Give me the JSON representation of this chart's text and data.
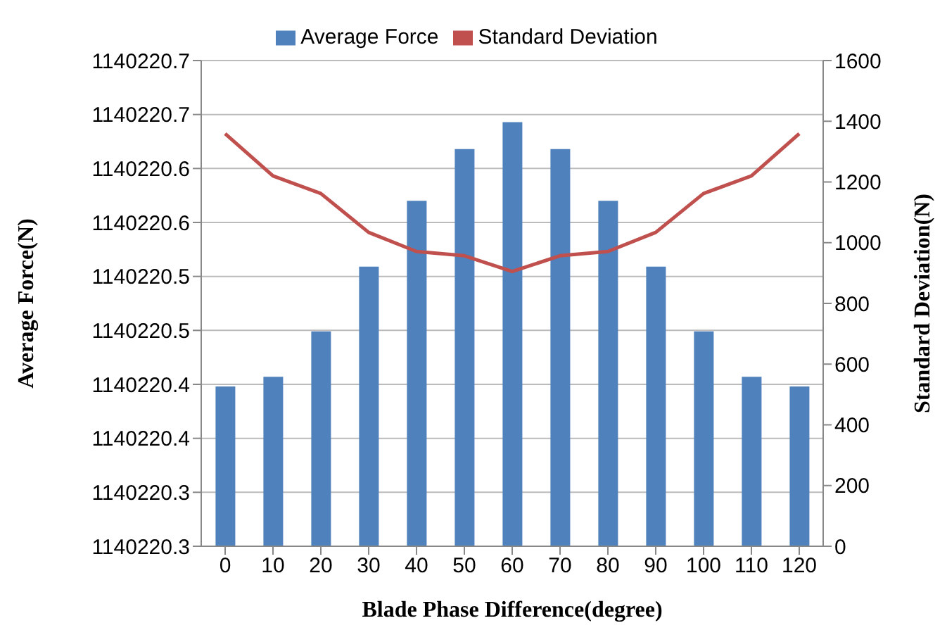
{
  "chart_data": {
    "type": "bar",
    "xlabel": "Blade Phase Difference(degree)",
    "ylabel": "Average Force(N)",
    "y2label": "Standard Deviation(N)",
    "categories": [
      "0",
      "10",
      "20",
      "30",
      "40",
      "50",
      "60",
      "70",
      "80",
      "90",
      "100",
      "110",
      "120"
    ],
    "series": [
      {
        "name": "Average Force",
        "color": "#4f81bd",
        "values": [
          1140220.398,
          1140220.407,
          1140220.449,
          1140220.509,
          1140220.57,
          1140220.618,
          1140220.643,
          1140220.618,
          1140220.57,
          1140220.509,
          1140220.449,
          1140220.407,
          1140220.398
        ]
      },
      {
        "name": "Standard Deviation",
        "type": "line",
        "axis": "y2",
        "color": "#c0504d",
        "values": [
          1359,
          1220,
          1162,
          1034,
          971,
          957,
          905,
          957,
          971,
          1034,
          1162,
          1220,
          1359
        ]
      }
    ],
    "ylim": [
      1140220.25,
      1140220.7
    ],
    "yticks": [
      {
        "value": 1140220.25,
        "label": "1140220.3"
      },
      {
        "value": 1140220.3,
        "label": "1140220.3"
      },
      {
        "value": 1140220.35,
        "label": "1140220.4"
      },
      {
        "value": 1140220.4,
        "label": "1140220.4"
      },
      {
        "value": 1140220.45,
        "label": "1140220.5"
      },
      {
        "value": 1140220.5,
        "label": "1140220.5"
      },
      {
        "value": 1140220.55,
        "label": "1140220.6"
      },
      {
        "value": 1140220.6,
        "label": "1140220.6"
      },
      {
        "value": 1140220.65,
        "label": "1140220.7"
      },
      {
        "value": 1140220.7,
        "label": "1140220.7"
      }
    ],
    "y2lim": [
      0,
      1600
    ],
    "y2ticks": [
      0,
      200,
      400,
      600,
      800,
      1000,
      1200,
      1400,
      1600
    ],
    "grid": "y",
    "legend": "top",
    "marker": "none",
    "line_style": "solid"
  }
}
